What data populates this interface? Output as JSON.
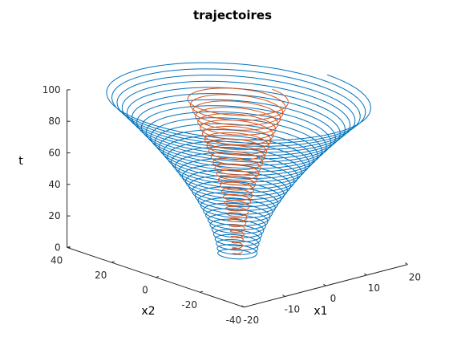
{
  "chart_data": {
    "type": "line",
    "projection": "3d",
    "title": "trajectoires",
    "xlabel": "x1",
    "ylabel": "x2",
    "zlabel": "t",
    "xlim": [
      -20,
      20
    ],
    "ylim": [
      -40,
      40
    ],
    "zlim": [
      0,
      100
    ],
    "x_ticks": [
      "-20",
      "-10",
      "0",
      "10",
      "20"
    ],
    "y_ticks": [
      "-40",
      "-20",
      "0",
      "20",
      "40"
    ],
    "z_ticks": [
      "0",
      "20",
      "40",
      "60",
      "80",
      "100"
    ],
    "grid": false,
    "series": [
      {
        "color": "#0072bd",
        "shape": "helix",
        "t_range": [
          0,
          100
        ],
        "turns": 34,
        "radius_x1_start": 3.2,
        "radius_x1_end": 22.0,
        "radius_x2_start": 6.5,
        "radius_x2_end": 45.0
      },
      {
        "color": "#d95319",
        "shape": "helix",
        "t_range": [
          0,
          100
        ],
        "turns": 28,
        "radius_x1_start": 0.8,
        "radius_x1_end": 8.5,
        "radius_x2_start": 1.5,
        "radius_x2_end": 17.0
      }
    ]
  }
}
